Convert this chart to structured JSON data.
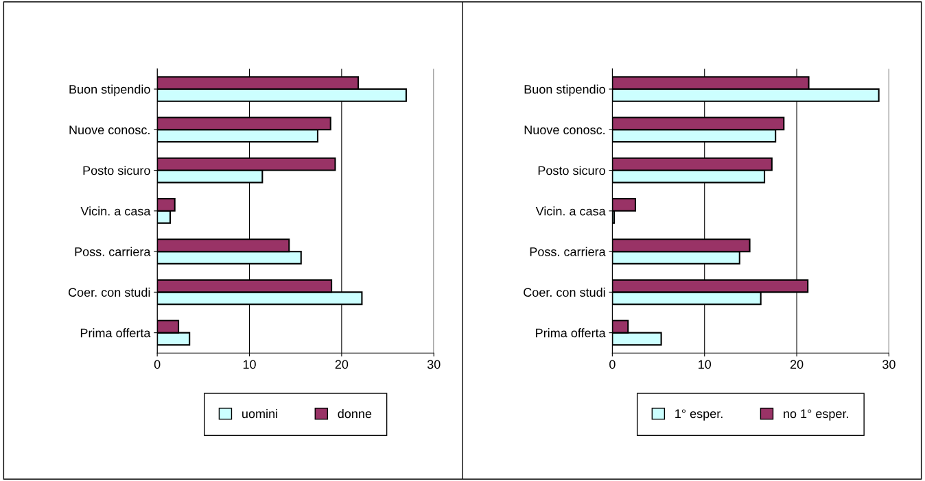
{
  "chart_data": [
    {
      "type": "bar",
      "orientation": "horizontal",
      "categories": [
        "Buon stipendio",
        "Nuove conosc.",
        "Posto sicuro",
        "Vicin. a casa",
        "Poss. carriera",
        "Coer. con studi",
        "Prima offerta"
      ],
      "series": [
        {
          "name": "uomini",
          "color": "#ccffff",
          "values": [
            27.0,
            17.4,
            11.4,
            1.4,
            15.6,
            22.2,
            3.5
          ]
        },
        {
          "name": "donne",
          "color": "#993366",
          "values": [
            21.8,
            18.8,
            19.3,
            1.9,
            14.3,
            18.9,
            2.3
          ]
        }
      ],
      "xlim": [
        0,
        30
      ],
      "xticks": [
        0,
        10,
        20,
        30
      ],
      "grid": "x",
      "legend": "bottom"
    },
    {
      "type": "bar",
      "orientation": "horizontal",
      "categories": [
        "Buon stipendio",
        "Nuove conosc.",
        "Posto sicuro",
        "Vicin. a casa",
        "Poss. carriera",
        "Coer. con studi",
        "Prima offerta"
      ],
      "series": [
        {
          "name": "1° esper.",
          "color": "#ccffff",
          "values": [
            28.9,
            17.7,
            16.5,
            0.2,
            13.8,
            16.1,
            5.3
          ]
        },
        {
          "name": "no 1° esper.",
          "color": "#993366",
          "values": [
            21.3,
            18.6,
            17.3,
            2.5,
            14.9,
            21.2,
            1.7
          ]
        }
      ],
      "xlim": [
        0,
        30
      ],
      "xticks": [
        0,
        10,
        20,
        30
      ],
      "grid": "x",
      "legend": "bottom"
    }
  ]
}
